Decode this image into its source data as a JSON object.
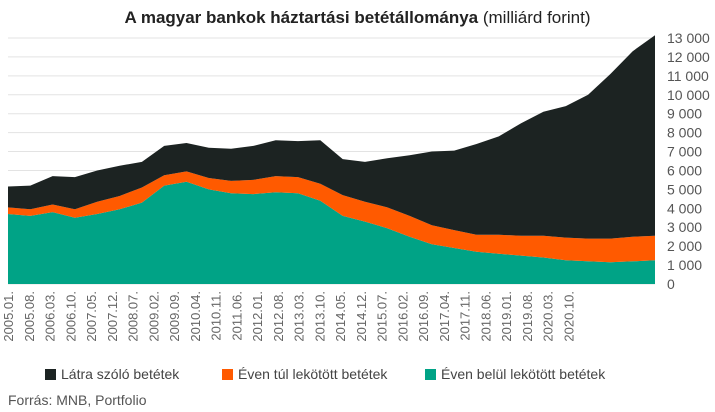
{
  "title": {
    "bold": "A magyar bankok háztartási betétállománya",
    "rest": " (milliárd forint)"
  },
  "source": "Forrás: MNB, Portfolio",
  "colors": {
    "sight": "#1c2322",
    "long": "#ff5a00",
    "short": "#00a386"
  },
  "chart_data": {
    "type": "area",
    "stacked": true,
    "x_ticks": [
      "2005.01.",
      "2005.08.",
      "2006.03.",
      "2006.10.",
      "2007.05.",
      "2007.12.",
      "2008.07.",
      "2009.02.",
      "2009.09.",
      "2010.04.",
      "2010.11.",
      "2011.06.",
      "2012.01.",
      "2012.08.",
      "2013.03.",
      "2013.10.",
      "2014.05.",
      "2014.12.",
      "2015.07.",
      "2016.02.",
      "2016.09.",
      "2017.04.",
      "2017.11.",
      "2018.06.",
      "2019.01.",
      "2019.08.",
      "2020.03.",
      "2020.10."
    ],
    "y_ticks": [
      "0",
      "1 000",
      "2 000",
      "3 000",
      "4 000",
      "5 000",
      "6 000",
      "7 000",
      "8 000",
      "9 000",
      "10 000",
      "11 000",
      "12 000",
      "13 000"
    ],
    "ylim": [
      0,
      13000
    ],
    "xlim": [
      "2005.01.",
      "2021.04."
    ],
    "grid": true,
    "legend_position": "bottom",
    "series": [
      {
        "name": "Éven belül lekötött betétek",
        "values": [
          3700,
          3600,
          3800,
          3500,
          3700,
          3950,
          4300,
          5200,
          5400,
          5000,
          4800,
          4750,
          4850,
          4800,
          4400,
          3600,
          3300,
          2950,
          2500,
          2100,
          1900,
          1700,
          1600,
          1500,
          1400,
          1250,
          1200,
          1150,
          1200,
          1250
        ]
      },
      {
        "name": "Éven túl lekötött betétek",
        "values": [
          350,
          350,
          400,
          450,
          650,
          700,
          800,
          550,
          550,
          600,
          650,
          750,
          850,
          850,
          900,
          1100,
          1050,
          1100,
          1100,
          1000,
          950,
          900,
          1000,
          1050,
          1150,
          1200,
          1200,
          1250,
          1300,
          1300
        ]
      },
      {
        "name": "Látra szóló betétek",
        "values": [
          1100,
          1250,
          1500,
          1700,
          1650,
          1600,
          1350,
          1550,
          1500,
          1600,
          1700,
          1800,
          1900,
          1900,
          2300,
          1900,
          2100,
          2600,
          3200,
          3900,
          4200,
          4800,
          5200,
          5950,
          6550,
          6950,
          7600,
          8700,
          9800,
          10600
        ]
      }
    ]
  },
  "legend": [
    {
      "label": "Látra szóló betétek",
      "color_key": "sight"
    },
    {
      "label": "Éven túl lekötött betétek",
      "color_key": "long"
    },
    {
      "label": "Éven belül lekötött betétek",
      "color_key": "short"
    }
  ]
}
